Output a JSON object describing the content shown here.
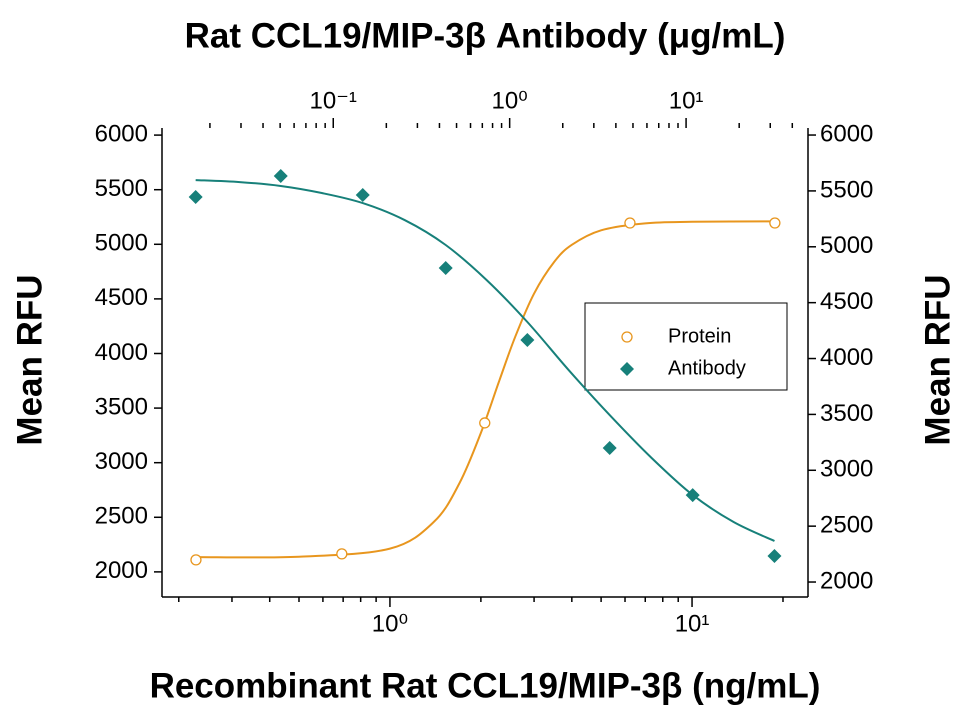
{
  "chart_data": {
    "type": "scatter",
    "x2_label": "Rat CCL19/MIP-3β Antibody (μg/mL)",
    "x_label": "Recombinant Rat CCL19/MIP-3β (ng/mL)",
    "y_label": "Mean RFU",
    "y2_label": "Mean RFU",
    "xscale": "log",
    "x2scale": "log",
    "xlim": [
      0.176,
      24.2
    ],
    "x2lim": [
      0.0107,
      49.1
    ],
    "ylim": [
      1770,
      6065
    ],
    "y2lim": [
      1866,
      6063
    ],
    "xticks": [
      {
        "value": 1,
        "label": "10⁰"
      },
      {
        "value": 10,
        "label": "10¹"
      }
    ],
    "x2ticks": [
      {
        "value": 0.1,
        "label": "10⁻¹"
      },
      {
        "value": 1,
        "label": "10⁰"
      },
      {
        "value": 10,
        "label": "10¹"
      }
    ],
    "yticks": [
      2000,
      2500,
      3000,
      3500,
      4000,
      4500,
      5000,
      5500,
      6000
    ],
    "y2ticks": [
      2000,
      2500,
      3000,
      3500,
      4000,
      4500,
      5000,
      5500,
      6000
    ],
    "legend_position": "right",
    "series": [
      {
        "name": "Protein",
        "color": "#e8961e",
        "marker": "circle",
        "x": [
          0.228,
          0.693,
          2.06,
          6.23,
          18.8
        ],
        "values": [
          2110,
          2165,
          3364,
          5195,
          5195
        ],
        "fit": {
          "x": [
            0.23,
            0.5,
            1,
            1.4,
            1.7,
            2,
            2.3,
            2.6,
            3,
            3.5,
            4,
            5,
            7,
            10,
            19
          ],
          "values": [
            2135,
            2139,
            2213,
            2460,
            2814,
            3273,
            3749,
            4155,
            4549,
            4840,
            4995,
            5128,
            5192,
            5206,
            5210
          ]
        }
      },
      {
        "name": "Antibody",
        "color": "#17807a",
        "marker": "diamond",
        "axis": "y2",
        "x_axis": "x2",
        "x": [
          0.0166,
          0.0504,
          0.147,
          0.434,
          1.26,
          3.69,
          10.9,
          31.7
        ],
        "values": [
          5445,
          5633,
          5463,
          4810,
          4166,
          3199,
          2778,
          2233
        ],
        "fit": {
          "x": [
            0.0166,
            0.0295,
            0.0504,
            0.0861,
            0.147,
            0.254,
            0.434,
            0.741,
            1.26,
            2.16,
            3.69,
            6.38,
            10.9,
            18.6,
            31.7
          ],
          "values": [
            5597,
            5579,
            5544,
            5481,
            5391,
            5239,
            5016,
            4702,
            4327,
            3897,
            3494,
            3110,
            2779,
            2537,
            2367
          ]
        }
      }
    ]
  }
}
